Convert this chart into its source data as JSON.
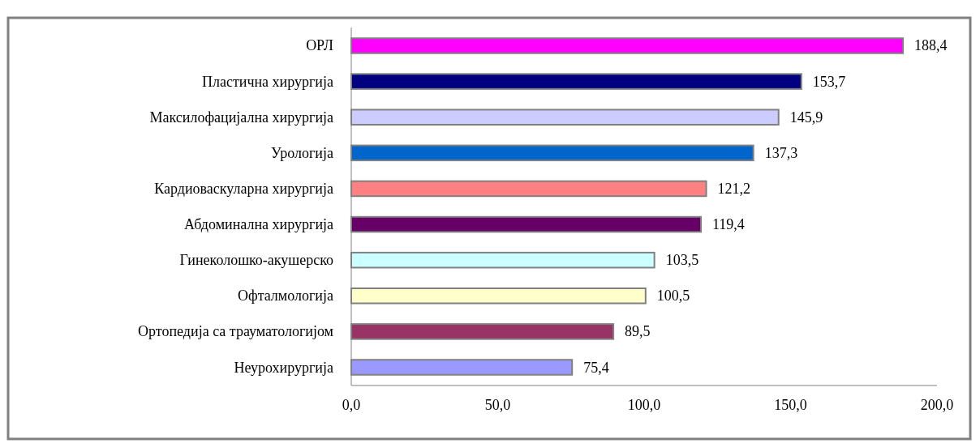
{
  "chart_data": {
    "type": "bar",
    "orientation": "horizontal",
    "categories": [
      "ОРЛ",
      "Пластична хирургија",
      "Максилофацијална хирургија",
      "Урологија",
      "Кардиоваскуларна хирургија",
      "Абдоминална хирургија",
      "Гинеколошко-акушерско",
      "Офталмологија",
      "Ортопедија са трауматологијом",
      "Неурохирургија"
    ],
    "values": [
      188.4,
      153.7,
      145.9,
      137.3,
      121.2,
      119.4,
      103.5,
      100.5,
      89.5,
      75.4
    ],
    "colors": [
      "#ff00ff",
      "#000080",
      "#ccccff",
      "#0066cc",
      "#ff8080",
      "#660066",
      "#ccffff",
      "#ffffcc",
      "#993366",
      "#9999ff"
    ],
    "value_labels": [
      "188,4",
      "153,7",
      "145,9",
      "137,3",
      "121,2",
      "119,4",
      "103,5",
      "100,5",
      "89,5",
      "75,4"
    ],
    "xlim": [
      0,
      200
    ],
    "xticks": [
      {
        "value": 0,
        "label": "0,0"
      },
      {
        "value": 50,
        "label": "50,0"
      },
      {
        "value": 100,
        "label": "100,0"
      },
      {
        "value": 150,
        "label": "150,0"
      },
      {
        "value": 200,
        "label": "200,0"
      }
    ],
    "grid": false
  }
}
